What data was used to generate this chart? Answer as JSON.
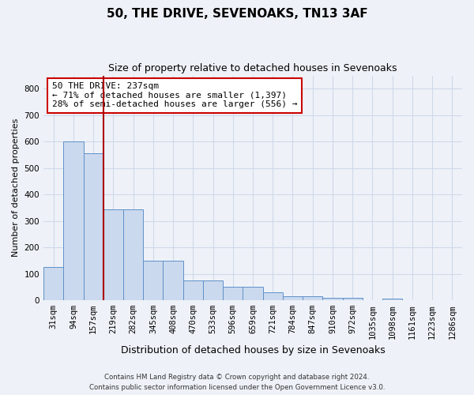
{
  "title1": "50, THE DRIVE, SEVENOAKS, TN13 3AF",
  "title2": "Size of property relative to detached houses in Sevenoaks",
  "xlabel": "Distribution of detached houses by size in Sevenoaks",
  "ylabel": "Number of detached properties",
  "categories": [
    "31sqm",
    "94sqm",
    "157sqm",
    "219sqm",
    "282sqm",
    "345sqm",
    "408sqm",
    "470sqm",
    "533sqm",
    "596sqm",
    "659sqm",
    "721sqm",
    "784sqm",
    "847sqm",
    "910sqm",
    "972sqm",
    "1035sqm",
    "1098sqm",
    "1161sqm",
    "1223sqm",
    "1286sqm"
  ],
  "values": [
    125,
    600,
    555,
    345,
    345,
    150,
    150,
    75,
    75,
    50,
    50,
    30,
    15,
    15,
    10,
    10,
    0,
    5,
    0,
    0,
    0
  ],
  "bar_color": "#cad9ee",
  "bar_edge_color": "#6090c8",
  "vline_x_idx": 2.5,
  "vline_color": "#aa0000",
  "annotation_text": "50 THE DRIVE: 237sqm\n← 71% of detached houses are smaller (1,397)\n28% of semi-detached houses are larger (556) →",
  "annotation_box_facecolor": "#ffffff",
  "annotation_box_edgecolor": "#cc0000",
  "footer1": "Contains HM Land Registry data © Crown copyright and database right 2024.",
  "footer2": "Contains public sector information licensed under the Open Government Licence v3.0.",
  "ylim": [
    0,
    850
  ],
  "yticks": [
    0,
    100,
    200,
    300,
    400,
    500,
    600,
    700,
    800
  ],
  "bg_color": "#eef2f8",
  "grid_color": "#d0d8e8",
  "title1_fontsize": 11,
  "title2_fontsize": 9,
  "ylabel_fontsize": 8,
  "xlabel_fontsize": 9,
  "tick_fontsize": 7.5,
  "annotation_fontsize": 8
}
